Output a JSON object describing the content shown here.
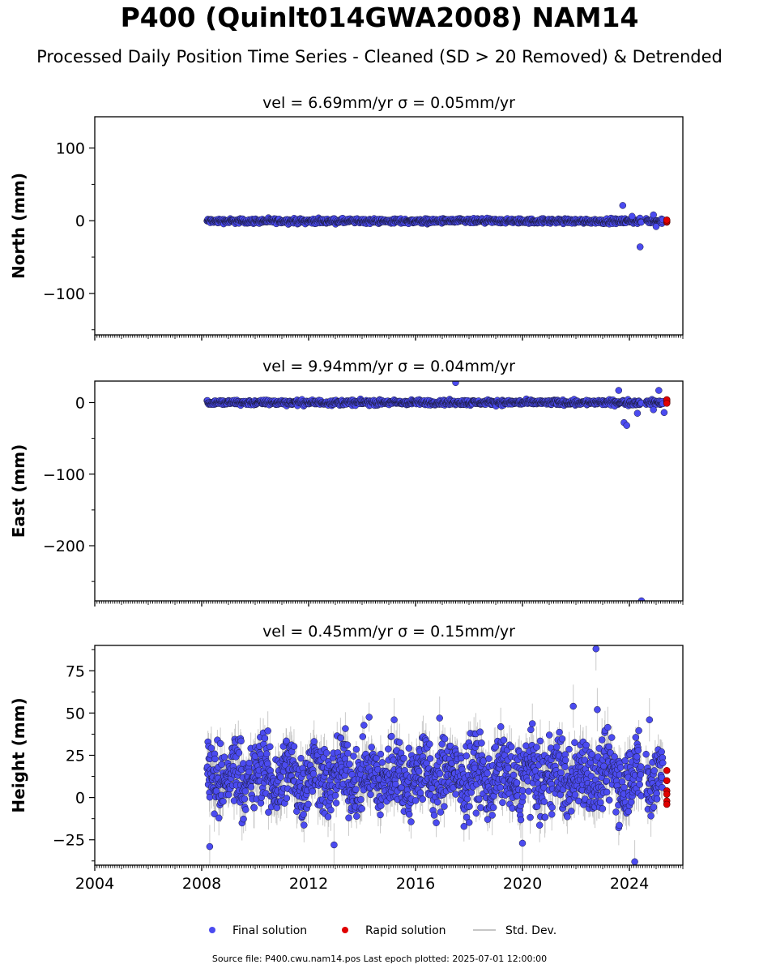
{
  "figure": {
    "title": "P400 (Quinlt014GWA2008) NAM14",
    "subtitle": "Processed Daily Position Time Series - Cleaned (SD > 20 Removed) & Detrended",
    "footer": "Source file: P400.cwu.nam14.pos  Last epoch plotted: 2025-07-01 12:00:00"
  },
  "colors": {
    "final": "#4b4bf0",
    "rapid": "#e00000",
    "stddev": "#b4b4b4",
    "marker_edge": "#1a1a3a"
  },
  "legend": {
    "placement": "bottom-center",
    "items": [
      {
        "label": "Final solution",
        "marker": "blue-dot"
      },
      {
        "label": "Rapid solution",
        "marker": "red-dot"
      },
      {
        "label": "Std. Dev.",
        "marker": "grey-line"
      }
    ]
  },
  "chart_data": [
    {
      "type": "scatter",
      "title": "vel = 6.69mm/yr   σ = 0.05mm/yr",
      "ylabel": "North (mm)",
      "xlim": [
        2004.0,
        2026.0
      ],
      "ylim": [
        -157,
        143
      ],
      "yticks": [
        {
          "v": 100,
          "label": "100"
        },
        {
          "v": 0,
          "label": "0"
        },
        {
          "v": -100,
          "label": "−100"
        }
      ],
      "xticks": [],
      "final_series": {
        "name": "Final solution",
        "x_start": 2008.2,
        "x_end": 2025.25,
        "typical_range": [
          -6,
          5
        ],
        "typical_sigma": 3,
        "outliers": [
          {
            "x": 2023.75,
            "y": 21
          },
          {
            "x": 2024.4,
            "y": -36
          },
          {
            "x": 2024.9,
            "y": 8
          },
          {
            "x": 2024.1,
            "y": 6
          },
          {
            "x": 2025.0,
            "y": -8
          }
        ]
      },
      "rapid_series": {
        "name": "Rapid solution",
        "x": 2025.4,
        "y": [
          -2,
          0,
          -1,
          1
        ]
      }
    },
    {
      "type": "scatter",
      "title": "vel = 9.94mm/yr   σ = 0.04mm/yr",
      "ylabel": "East (mm)",
      "xlim": [
        2004.0,
        2026.0
      ],
      "ylim": [
        -277,
        30
      ],
      "yticks": [
        {
          "v": 0,
          "label": "0"
        },
        {
          "v": -100,
          "label": "−100"
        },
        {
          "v": -200,
          "label": "−200"
        }
      ],
      "xticks": [],
      "final_series": {
        "name": "Final solution",
        "x_start": 2008.2,
        "x_end": 2025.25,
        "typical_range": [
          -6,
          6
        ],
        "typical_sigma": 3,
        "outliers": [
          {
            "x": 2017.5,
            "y": 28
          },
          {
            "x": 2023.8,
            "y": -28
          },
          {
            "x": 2023.9,
            "y": -32
          },
          {
            "x": 2024.45,
            "y": -277
          },
          {
            "x": 2024.3,
            "y": -15
          },
          {
            "x": 2024.9,
            "y": -10
          },
          {
            "x": 2023.6,
            "y": 17
          },
          {
            "x": 2025.1,
            "y": 17
          },
          {
            "x": 2025.3,
            "y": -14
          }
        ]
      },
      "rapid_series": {
        "name": "Rapid solution",
        "x": 2025.4,
        "y": [
          0,
          2,
          4,
          -1
        ]
      }
    },
    {
      "type": "scatter",
      "title": "vel = 0.45mm/yr   σ = 0.15mm/yr",
      "ylabel": "Height (mm)",
      "xlim": [
        2004.0,
        2026.0
      ],
      "ylim": [
        -40,
        90
      ],
      "yticks": [
        {
          "v": 75,
          "label": "75"
        },
        {
          "v": 50,
          "label": "50"
        },
        {
          "v": 25,
          "label": "25"
        },
        {
          "v": 0,
          "label": "0"
        },
        {
          "v": -25,
          "label": "−25"
        }
      ],
      "xticks": [
        {
          "v": 2004,
          "label": "2004"
        },
        {
          "v": 2008,
          "label": "2008"
        },
        {
          "v": 2012,
          "label": "2012"
        },
        {
          "v": 2016,
          "label": "2016"
        },
        {
          "v": 2020,
          "label": "2020"
        },
        {
          "v": 2024,
          "label": "2024"
        }
      ],
      "final_series": {
        "name": "Final solution",
        "x_start": 2008.2,
        "x_end": 2025.25,
        "typical_range": [
          -15,
          40
        ],
        "typical_sigma": 8,
        "outliers": [
          {
            "x": 2022.75,
            "y": 88
          },
          {
            "x": 2024.2,
            "y": -38
          },
          {
            "x": 2008.3,
            "y": -29
          },
          {
            "x": 2012.95,
            "y": -28
          },
          {
            "x": 2020.0,
            "y": -27
          },
          {
            "x": 2021.9,
            "y": 54
          },
          {
            "x": 2022.8,
            "y": 52
          },
          {
            "x": 2024.75,
            "y": 46
          },
          {
            "x": 2016.9,
            "y": 47
          },
          {
            "x": 2015.2,
            "y": 46
          }
        ]
      },
      "rapid_series": {
        "name": "Rapid solution",
        "x": 2025.4,
        "y": [
          16,
          10,
          4,
          2,
          -2,
          -4
        ]
      }
    }
  ]
}
